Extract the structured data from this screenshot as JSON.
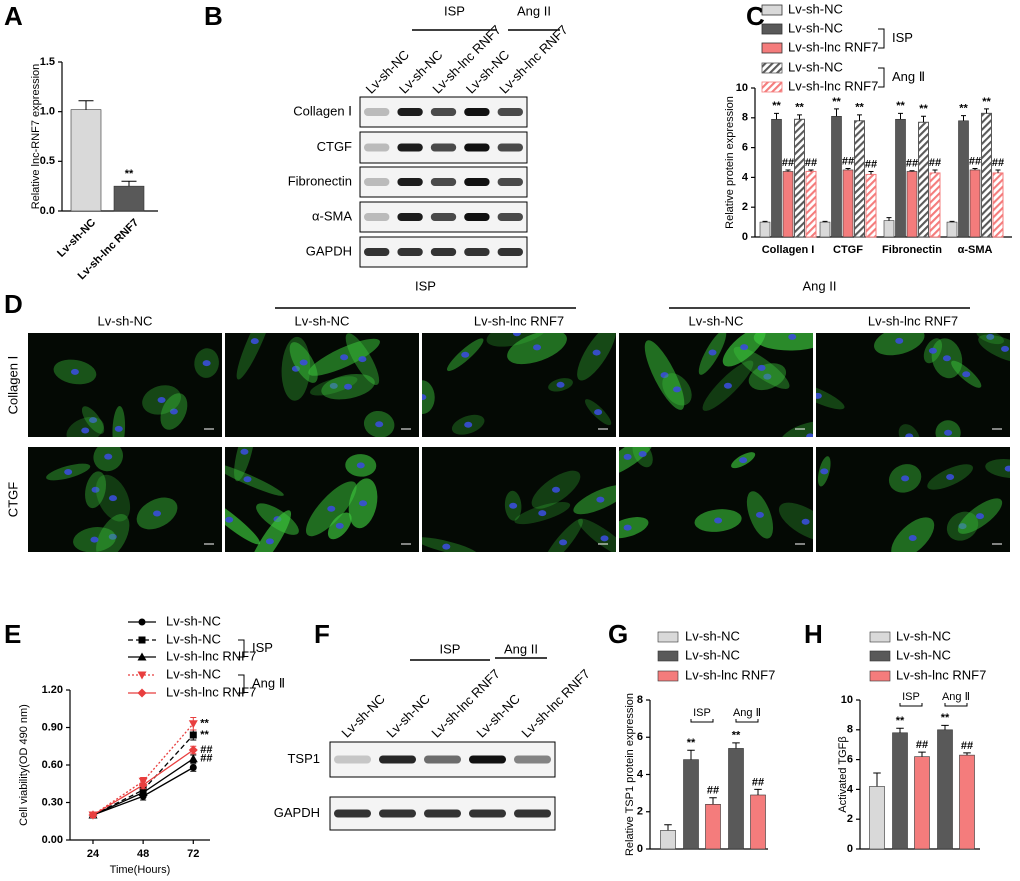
{
  "panel_labels": [
    "A",
    "B",
    "C",
    "D",
    "E",
    "F",
    "G",
    "H"
  ],
  "chart_data": [
    {
      "type": "bar",
      "y_label": "Relative lnc-RNF7 expression",
      "categories": [
        "Lv-sh-NC",
        "Lv-sh-lnc RNF7"
      ],
      "values": [
        1.02,
        0.25
      ],
      "errors": [
        0.09,
        0.05
      ],
      "colors": [
        "#d9d9d9",
        "#595959"
      ],
      "annotations": [
        null,
        "**"
      ],
      "ylim": [
        0,
        1.5
      ],
      "yticks": [
        {
          "value": 0,
          "label": "0.0"
        },
        0.5,
        {
          "value": 1,
          "label": "1.0"
        },
        1.5
      ]
    },
    {
      "type": "grouped_bar",
      "y_label": "Relative protein expression",
      "categories": [
        "Collagen I",
        "CTGF",
        "Fibronectin",
        "α-SMA"
      ],
      "ylim": [
        0,
        10
      ],
      "yticks": [
        0,
        2,
        4,
        6,
        8,
        10
      ],
      "legend_groups": [
        "ISP",
        "Ang Ⅱ"
      ],
      "series": [
        {
          "name": "Lv-sh-NC",
          "color": "#d9d9d9",
          "values": [
            1,
            1,
            1.1,
            1
          ],
          "errors": [
            0.05,
            0.05,
            0.2,
            0.05
          ]
        },
        {
          "name": "Lv-sh-NC",
          "color": "#595959",
          "values": [
            7.9,
            8.1,
            7.9,
            7.8
          ],
          "errors": [
            0.4,
            0.5,
            0.4,
            0.35
          ],
          "annotations": [
            "**",
            "**",
            "**",
            "**"
          ]
        },
        {
          "name": "Lv-sh-lnc RNF7",
          "color": "#f47c7c",
          "values": [
            4.4,
            4.5,
            4.4,
            4.5
          ],
          "errors": [
            0.1,
            0.1,
            0.05,
            0.1
          ],
          "annotations": [
            "##",
            "##",
            "##",
            "##"
          ]
        },
        {
          "name": "Lv-sh-NC",
          "color": "#595959",
          "pattern": "hatch",
          "values": [
            7.9,
            7.8,
            7.7,
            8.3
          ],
          "errors": [
            0.3,
            0.4,
            0.4,
            0.3
          ],
          "annotations": [
            "**",
            "**",
            "**",
            "**"
          ]
        },
        {
          "name": "Lv-sh-lnc RNF7",
          "color": "#f47c7c",
          "pattern": "hatch",
          "values": [
            4.4,
            4.2,
            4.3,
            4.3
          ],
          "errors": [
            0.1,
            0.2,
            0.2,
            0.2
          ],
          "annotations": [
            "##",
            "##",
            "##",
            "##"
          ]
        }
      ]
    },
    {
      "type": "line",
      "x_label": "Time(Hours)",
      "y_label": "Cell viability(OD 490 nm)",
      "x": [
        24,
        48,
        72
      ],
      "xlim": [
        13,
        80
      ],
      "xticks": [
        24,
        48,
        72
      ],
      "ylim": [
        0,
        1.2
      ],
      "yticks": [
        {
          "value": 0,
          "label": "0.00"
        },
        {
          "value": 0.3,
          "label": "0.30"
        },
        {
          "value": 0.6,
          "label": "0.60"
        },
        {
          "value": 0.9,
          "label": "0.90"
        },
        {
          "value": 1.2,
          "label": "1.20"
        }
      ],
      "legend_groups": [
        "ISP",
        "Ang Ⅱ"
      ],
      "series": [
        {
          "name": "Lv-sh-NC",
          "color": "#000000",
          "dash": "solid",
          "marker": "circle",
          "values": [
            0.2,
            0.35,
            0.58
          ],
          "errors": [
            0.02,
            0.03,
            0.03
          ]
        },
        {
          "name": "Lv-sh-NC",
          "color": "#000000",
          "dash": "dashed",
          "marker": "square",
          "values": [
            0.2,
            0.4,
            0.84
          ],
          "errors": [
            0.02,
            0.03,
            0.04
          ],
          "end_label": "**"
        },
        {
          "name": "Lv-sh-lnc RNF7",
          "color": "#000000",
          "dash": "solid",
          "marker": "triangle",
          "values": [
            0.2,
            0.38,
            0.65
          ],
          "errors": [
            0.02,
            0.03,
            0.03
          ],
          "end_label": "##"
        },
        {
          "name": "Lv-sh-NC",
          "color": "#e83e3e",
          "dash": "dotted",
          "marker": "triangle-down",
          "values": [
            0.2,
            0.47,
            0.93
          ],
          "errors": [
            0.02,
            0.03,
            0.05
          ],
          "end_label": "**"
        },
        {
          "name": "Lv-sh-lnc RNF7",
          "color": "#e83e3e",
          "dash": "solid",
          "marker": "diamond",
          "values": [
            0.2,
            0.44,
            0.72
          ],
          "errors": [
            0.02,
            0.03,
            0.03
          ],
          "end_label": "##"
        }
      ]
    },
    {
      "type": "bar",
      "y_label": "Relative TSP1 protein expression",
      "values": [
        1.0,
        4.8,
        2.4,
        5.4,
        2.9
      ],
      "errors": [
        0.3,
        0.5,
        0.35,
        0.3,
        0.3
      ],
      "colors": [
        "#d9d9d9",
        "#595959",
        "#f47c7c",
        "#595959",
        "#f47c7c"
      ],
      "annotations": [
        null,
        "**",
        "##",
        "**",
        "##"
      ],
      "legend": [
        {
          "name": "Lv-sh-NC",
          "color": "#d9d9d9"
        },
        {
          "name": "Lv-sh-NC",
          "color": "#595959"
        },
        {
          "name": "Lv-sh-lnc RNF7",
          "color": "#f47c7c"
        }
      ],
      "group_labels": [
        "ISP",
        "Ang Ⅱ"
      ],
      "ylim": [
        0,
        8
      ],
      "yticks": [
        0,
        2,
        4,
        6,
        8
      ]
    },
    {
      "type": "bar",
      "y_label": "Activated TGFβ",
      "values": [
        4.2,
        7.8,
        6.2,
        8.0,
        6.3
      ],
      "errors": [
        0.9,
        0.3,
        0.3,
        0.3,
        0.15
      ],
      "colors": [
        "#d9d9d9",
        "#595959",
        "#f47c7c",
        "#595959",
        "#f47c7c"
      ],
      "annotations": [
        null,
        "**",
        "##",
        "**",
        "##"
      ],
      "legend": [
        {
          "name": "Lv-sh-NC",
          "color": "#d9d9d9"
        },
        {
          "name": "Lv-sh-NC",
          "color": "#595959"
        },
        {
          "name": "Lv-sh-lnc RNF7",
          "color": "#f47c7c"
        }
      ],
      "group_labels": [
        "ISP",
        "Ang Ⅱ"
      ],
      "ylim": [
        0,
        10
      ],
      "yticks": [
        0,
        2,
        4,
        6,
        8,
        10
      ]
    }
  ],
  "blots": [
    {
      "groups": [
        "ISP",
        "Ang II"
      ],
      "columns": [
        "Lv-sh-NC",
        "Lv-sh-NC",
        "Lv-sh-lnc RNF7",
        "Lv-sh-NC",
        "Lv-sh-lnc RNF7"
      ],
      "rows": [
        "Collagen Ⅰ",
        "CTGF",
        "Fibronectin",
        "α-SMA",
        "GAPDH"
      ]
    },
    {
      "groups": [
        "ISP",
        "Ang II"
      ],
      "columns": [
        "Lv-sh-NC",
        "Lv-sh-NC",
        "Lv-sh-lnc RNF7",
        "Lv-sh-NC",
        "Lv-sh-lnc RNF7"
      ],
      "rows": [
        "TSP1",
        "GAPDH"
      ]
    }
  ],
  "micrographs": {
    "groups": [
      "ISP",
      "Ang II"
    ],
    "columns": [
      "Lv-sh-NC",
      "Lv-sh-NC",
      "Lv-sh-lnc RNF7",
      "Lv-sh-NC",
      "Lv-sh-lnc RNF7"
    ],
    "rows": [
      "Collagen Ⅰ",
      "CTGF"
    ]
  }
}
